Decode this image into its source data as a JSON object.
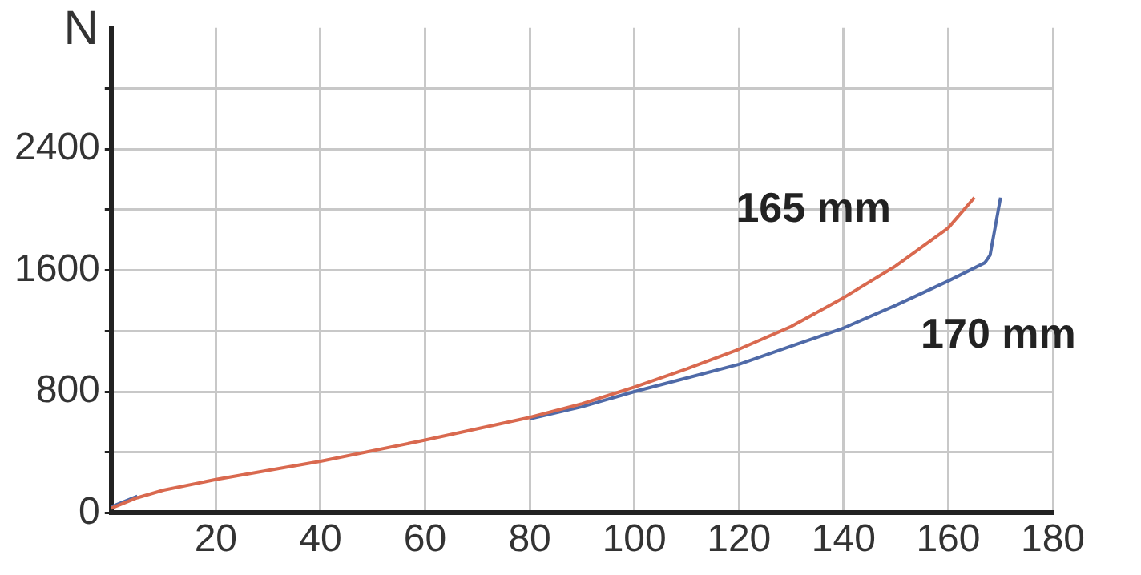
{
  "chart_data": {
    "type": "line",
    "ylabel": "N",
    "xlim": [
      0,
      180
    ],
    "xticks": [
      {
        "value": 0,
        "label": null
      },
      20,
      40,
      60,
      80,
      100,
      120,
      140,
      160,
      180
    ],
    "ylim": [
      0,
      3200
    ],
    "yticks": [
      0,
      {
        "value": 400,
        "label": null
      },
      800,
      {
        "value": 1200,
        "label": null
      },
      1600,
      {
        "value": 2000,
        "label": null
      },
      2400,
      {
        "value": 2800,
        "label": null
      }
    ],
    "grid": true,
    "legend": false,
    "marker": "none",
    "line_style": "solid",
    "series": [
      {
        "name": "165 mm",
        "color": "#d9694f",
        "x": [
          0,
          5,
          10,
          20,
          40,
          60,
          80,
          90,
          100,
          110,
          120,
          130,
          140,
          150,
          160,
          165
        ],
        "values": [
          30,
          100,
          150,
          220,
          340,
          480,
          630,
          720,
          830,
          950,
          1080,
          1230,
          1420,
          1630,
          1880,
          2080
        ]
      },
      {
        "name": "170 mm",
        "color": "#4f6aa8",
        "x": [
          0,
          5,
          10,
          20,
          40,
          60,
          80,
          90,
          100,
          110,
          120,
          130,
          140,
          150,
          160,
          167,
          168,
          170
        ],
        "values": [
          40,
          110,
          null,
          null,
          null,
          null,
          620,
          700,
          800,
          890,
          980,
          1100,
          1220,
          1370,
          1530,
          1650,
          1700,
          2080
        ]
      }
    ]
  }
}
